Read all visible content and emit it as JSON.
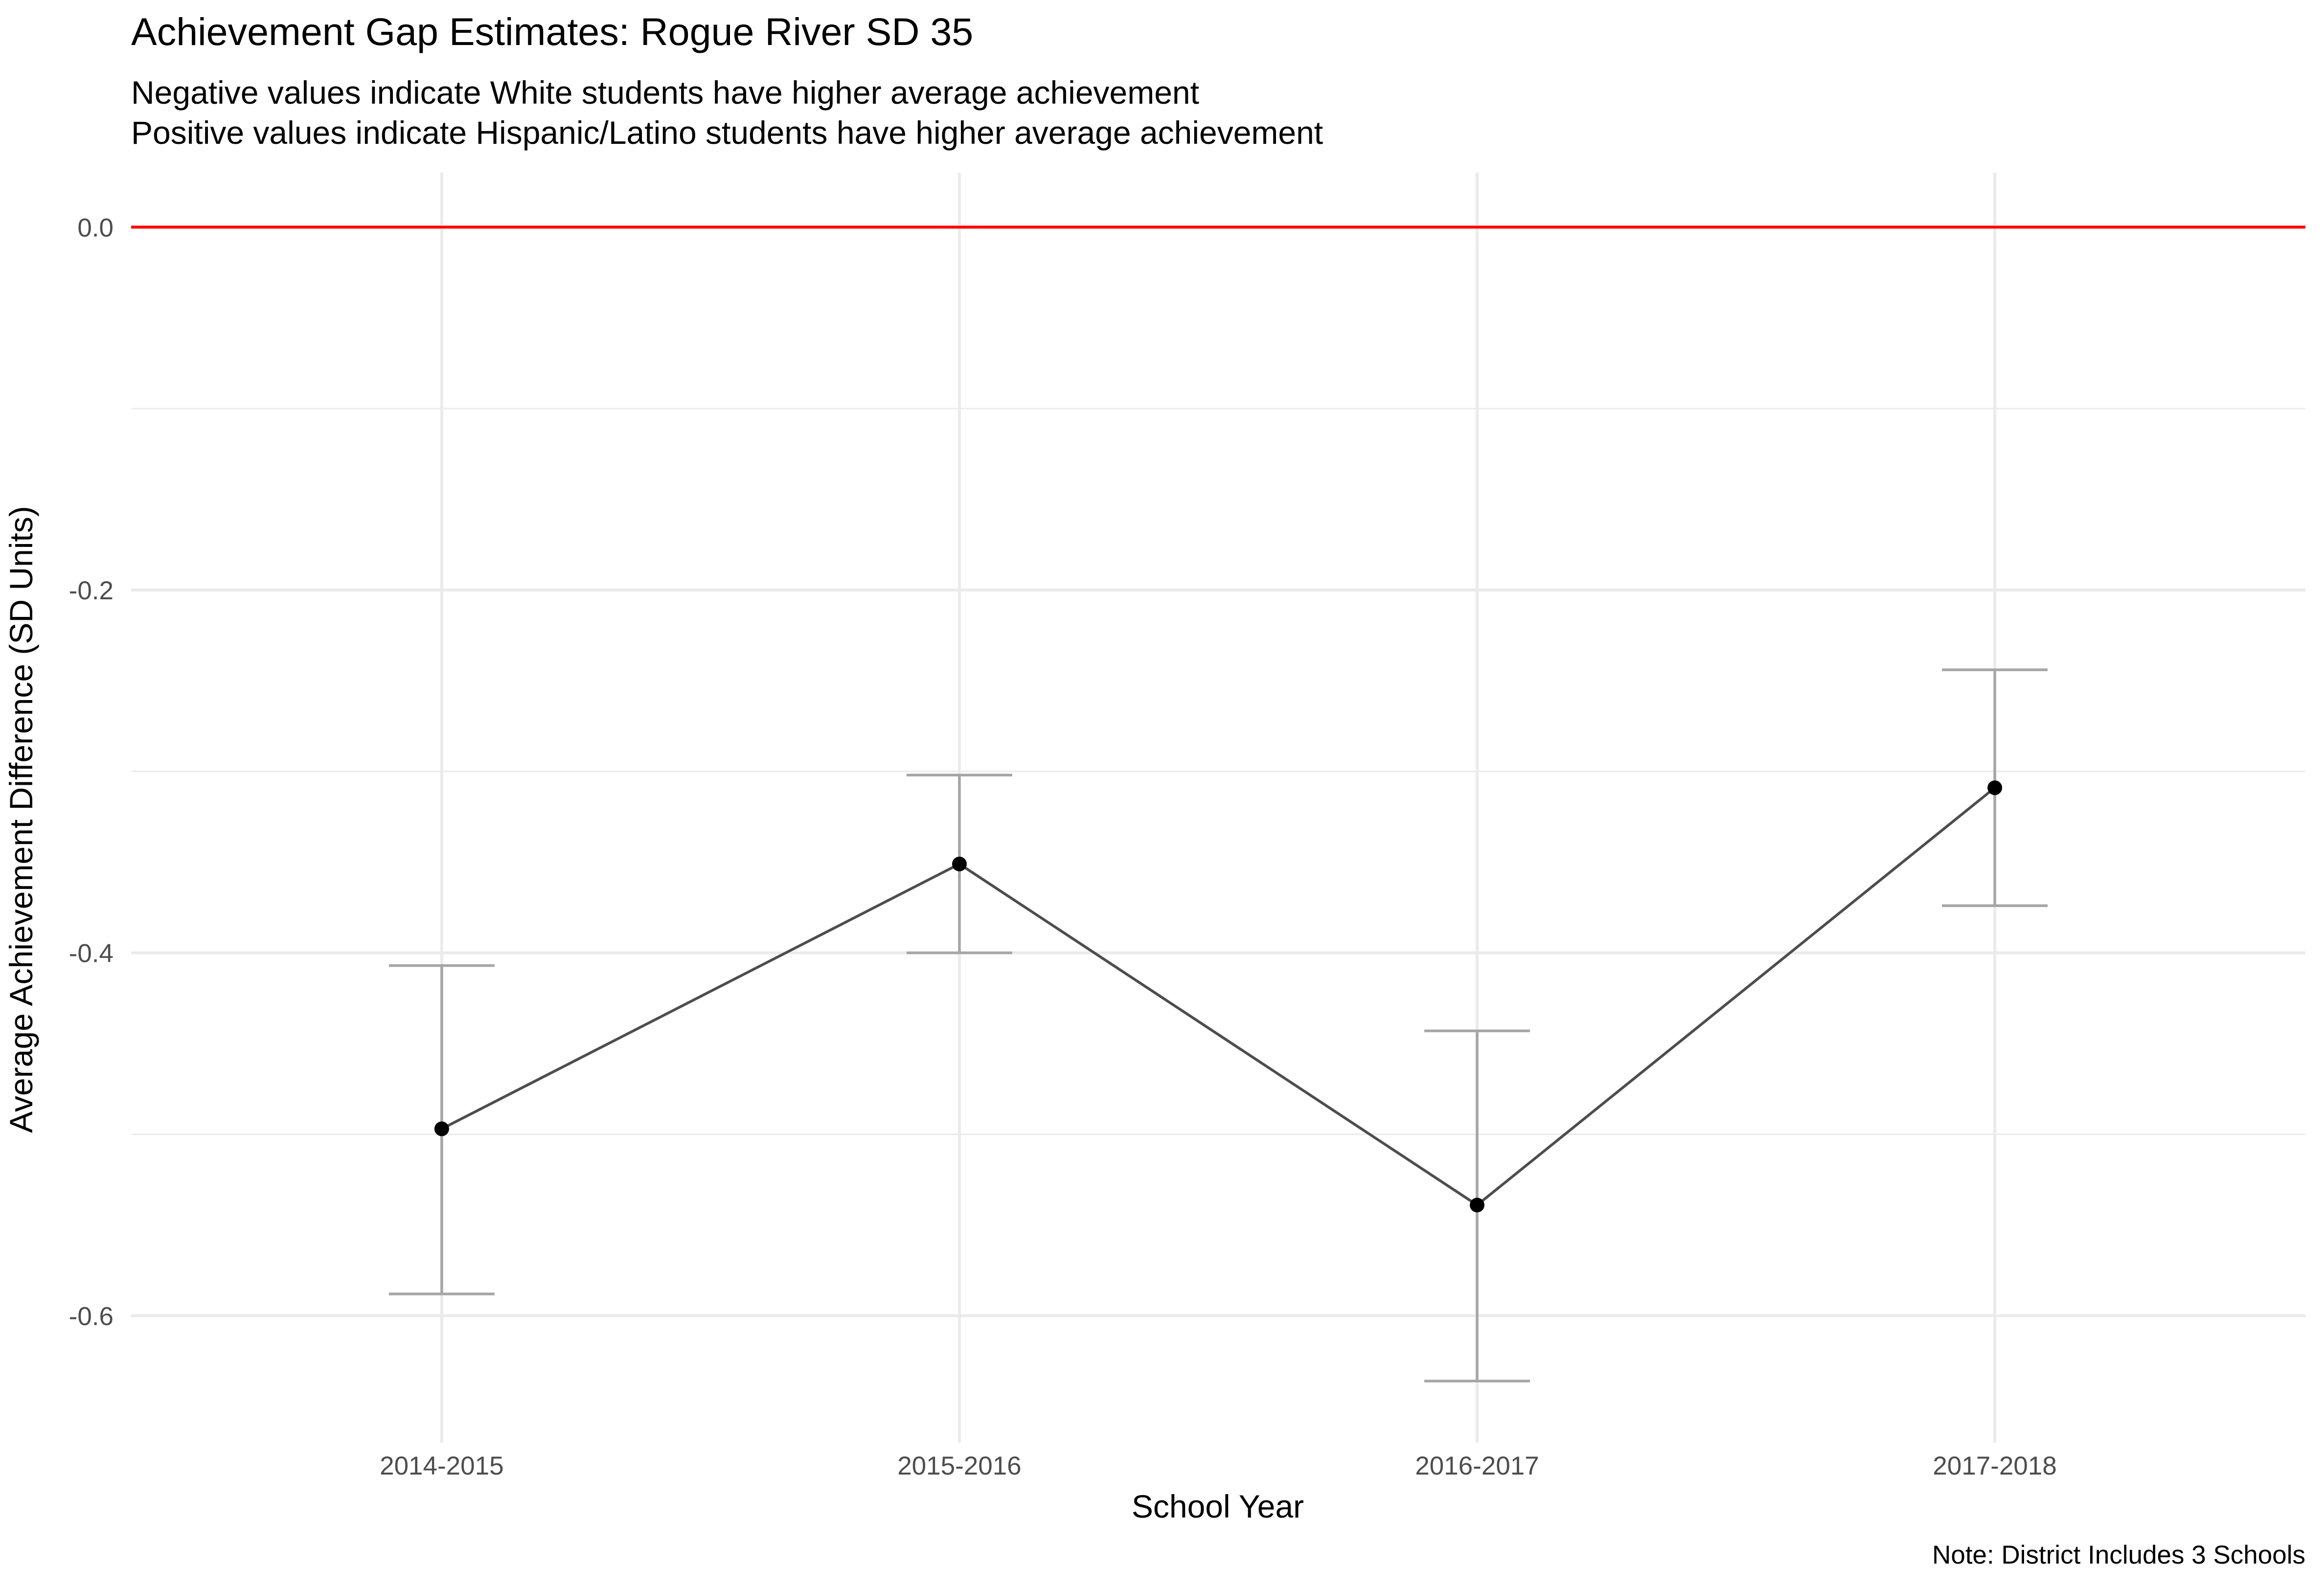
{
  "chart_data": {
    "type": "line",
    "title": "Achievement Gap Estimates: Rogue River SD 35",
    "subtitle_lines": [
      "Negative values indicate White students have higher average achievement",
      "Positive values indicate Hispanic/Latino students have higher average achievement"
    ],
    "xlabel": "School Year",
    "ylabel": "Average Achievement Difference (SD Units)",
    "caption": "Note: District Includes 3 Schools",
    "categories": [
      "2014-2015",
      "2015-2016",
      "2016-2017",
      "2017-2018"
    ],
    "values": [
      -0.497,
      -0.351,
      -0.539,
      -0.309
    ],
    "lower": [
      -0.588,
      -0.4,
      -0.636,
      -0.374
    ],
    "upper": [
      -0.407,
      -0.302,
      -0.443,
      -0.244
    ],
    "ylim": [
      -0.67,
      0.03
    ],
    "y_ticks": [
      0.0,
      -0.2,
      -0.4,
      -0.6
    ],
    "y_tick_labels": [
      "0.0",
      "-0.2",
      "-0.4",
      "-0.6"
    ],
    "reference_line": {
      "y": 0.0,
      "color": "#ff0000"
    },
    "grid": true,
    "legend": "none",
    "colors": {
      "line": "#4d4d4d",
      "point": "#000000",
      "error_bar": "#a6a6a6",
      "grid": "#ebebeb"
    }
  }
}
